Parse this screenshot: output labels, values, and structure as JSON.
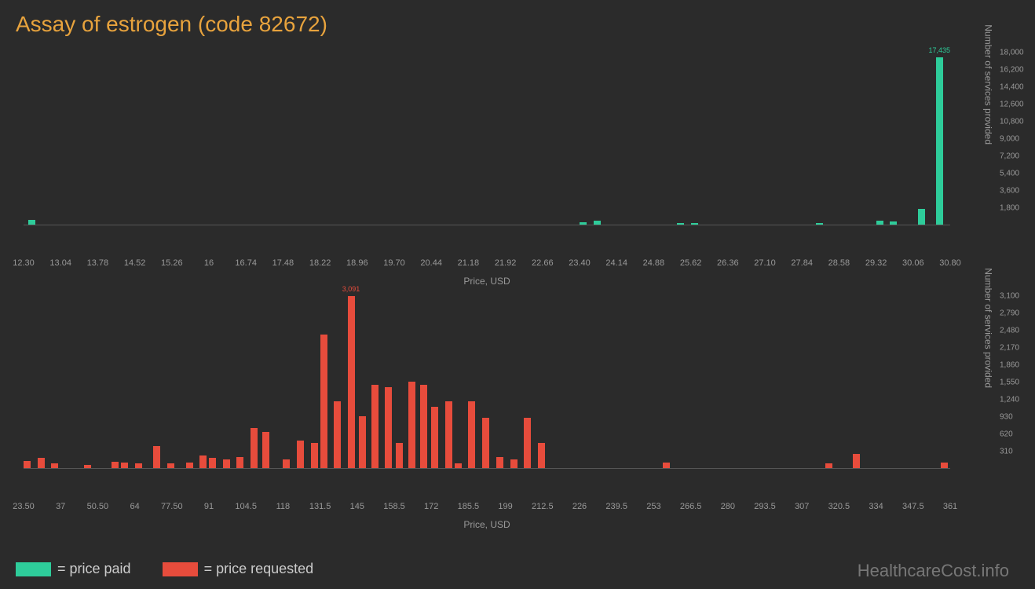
{
  "title": "Assay of estrogen (code 82672)",
  "colors": {
    "background": "#2b2b2b",
    "title": "#e8a33d",
    "paid": "#2ecc9a",
    "requested": "#e74c3c",
    "axis_text": "#999999",
    "legend_text": "#cccccc",
    "watermark": "#777777"
  },
  "chart_top": {
    "type": "bar",
    "x_label": "Price, USD",
    "y_label": "Number of services provided",
    "x_ticks": [
      "12.30",
      "13.04",
      "13.78",
      "14.52",
      "15.26",
      "16",
      "16.74",
      "17.48",
      "18.22",
      "18.96",
      "19.70",
      "20.44",
      "21.18",
      "21.92",
      "22.66",
      "23.40",
      "24.14",
      "24.88",
      "25.62",
      "26.36",
      "27.10",
      "27.84",
      "28.58",
      "29.32",
      "30.06",
      "30.80"
    ],
    "y_ticks": [
      "1,800",
      "3,600",
      "5,400",
      "7,200",
      "9,000",
      "10,800",
      "12,600",
      "14,400",
      "16,200",
      "18,000"
    ],
    "y_tick_values": [
      1800,
      3600,
      5400,
      7200,
      9000,
      10800,
      12600,
      14400,
      16200,
      18000
    ],
    "y_max": 18000,
    "bars": [
      {
        "x_frac": 0.005,
        "value": 500
      },
      {
        "x_frac": 0.6,
        "value": 250
      },
      {
        "x_frac": 0.615,
        "value": 400
      },
      {
        "x_frac": 0.705,
        "value": 200
      },
      {
        "x_frac": 0.72,
        "value": 200
      },
      {
        "x_frac": 0.855,
        "value": 200
      },
      {
        "x_frac": 0.92,
        "value": 450
      },
      {
        "x_frac": 0.935,
        "value": 300
      },
      {
        "x_frac": 0.965,
        "value": 1600
      },
      {
        "x_frac": 0.985,
        "value": 17435,
        "label": "17,435",
        "label_color": "#2ecc9a"
      }
    ]
  },
  "chart_bottom": {
    "type": "bar",
    "x_label": "Price, USD",
    "y_label": "Number of services provided",
    "x_ticks": [
      "23.50",
      "37",
      "50.50",
      "64",
      "77.50",
      "91",
      "104.5",
      "118",
      "131.5",
      "145",
      "158.5",
      "172",
      "185.5",
      "199",
      "212.5",
      "226",
      "239.5",
      "253",
      "266.5",
      "280",
      "293.5",
      "307",
      "320.5",
      "334",
      "347.5",
      "361"
    ],
    "y_ticks": [
      "310",
      "620",
      "930",
      "1,240",
      "1,550",
      "1,860",
      "2,170",
      "2,480",
      "2,790",
      "3,100"
    ],
    "y_tick_values": [
      310,
      620,
      930,
      1240,
      1550,
      1860,
      2170,
      2480,
      2790,
      3100
    ],
    "y_max": 3100,
    "bars": [
      {
        "x_frac": 0.0,
        "value": 120
      },
      {
        "x_frac": 0.015,
        "value": 180
      },
      {
        "x_frac": 0.03,
        "value": 80
      },
      {
        "x_frac": 0.065,
        "value": 60
      },
      {
        "x_frac": 0.095,
        "value": 110
      },
      {
        "x_frac": 0.105,
        "value": 100
      },
      {
        "x_frac": 0.12,
        "value": 80
      },
      {
        "x_frac": 0.14,
        "value": 400
      },
      {
        "x_frac": 0.155,
        "value": 80
      },
      {
        "x_frac": 0.175,
        "value": 100
      },
      {
        "x_frac": 0.19,
        "value": 220
      },
      {
        "x_frac": 0.2,
        "value": 180
      },
      {
        "x_frac": 0.215,
        "value": 150
      },
      {
        "x_frac": 0.23,
        "value": 200
      },
      {
        "x_frac": 0.245,
        "value": 720
      },
      {
        "x_frac": 0.258,
        "value": 650
      },
      {
        "x_frac": 0.28,
        "value": 150
      },
      {
        "x_frac": 0.295,
        "value": 500
      },
      {
        "x_frac": 0.31,
        "value": 450
      },
      {
        "x_frac": 0.32,
        "value": 2400
      },
      {
        "x_frac": 0.335,
        "value": 1200
      },
      {
        "x_frac": 0.35,
        "value": 3091,
        "label": "3,091",
        "label_color": "#e74c3c"
      },
      {
        "x_frac": 0.362,
        "value": 930
      },
      {
        "x_frac": 0.375,
        "value": 1500
      },
      {
        "x_frac": 0.39,
        "value": 1450
      },
      {
        "x_frac": 0.402,
        "value": 450
      },
      {
        "x_frac": 0.415,
        "value": 1550
      },
      {
        "x_frac": 0.428,
        "value": 1500
      },
      {
        "x_frac": 0.44,
        "value": 1100
      },
      {
        "x_frac": 0.455,
        "value": 1200
      },
      {
        "x_frac": 0.465,
        "value": 80
      },
      {
        "x_frac": 0.48,
        "value": 1200
      },
      {
        "x_frac": 0.495,
        "value": 900
      },
      {
        "x_frac": 0.51,
        "value": 200
      },
      {
        "x_frac": 0.525,
        "value": 150
      },
      {
        "x_frac": 0.54,
        "value": 900
      },
      {
        "x_frac": 0.555,
        "value": 450
      },
      {
        "x_frac": 0.69,
        "value": 100
      },
      {
        "x_frac": 0.865,
        "value": 80
      },
      {
        "x_frac": 0.895,
        "value": 250
      },
      {
        "x_frac": 0.99,
        "value": 100
      }
    ]
  },
  "legend": {
    "paid": "= price paid",
    "requested": "= price requested"
  },
  "watermark": "HealthcareCost.info"
}
